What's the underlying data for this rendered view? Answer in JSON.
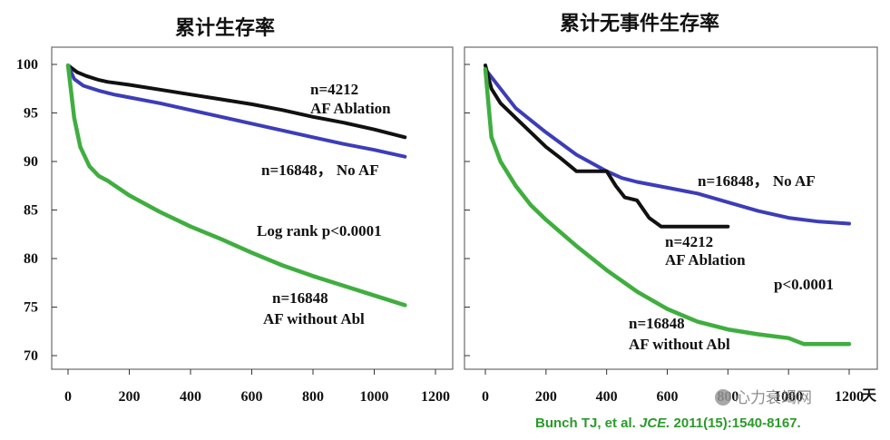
{
  "chart_data": [
    {
      "type": "line",
      "title": "累计生存率",
      "xlabel": "",
      "ylabel": "",
      "xlim": [
        0,
        1200
      ],
      "ylim": [
        70,
        100
      ],
      "xticks": [
        "0",
        "200",
        "400",
        "600",
        "800",
        "1000",
        "1200"
      ],
      "yticks": [
        "100",
        "95",
        "90",
        "85",
        "80",
        "75",
        "70"
      ],
      "series": [
        {
          "name": "AF Ablation",
          "color": "#111111",
          "x": [
            0,
            30,
            60,
            100,
            130,
            200,
            300,
            400,
            500,
            600,
            700,
            800,
            900,
            1000,
            1100
          ],
          "y": [
            99.9,
            99.2,
            98.8,
            98.4,
            98.2,
            97.9,
            97.4,
            96.9,
            96.4,
            95.9,
            95.3,
            94.6,
            94.0,
            93.3,
            92.5
          ]
        },
        {
          "name": "No AF",
          "color": "#3d3db8",
          "x": [
            0,
            20,
            50,
            100,
            150,
            200,
            300,
            400,
            500,
            600,
            700,
            800,
            900,
            1000,
            1100
          ],
          "y": [
            99.9,
            98.5,
            97.8,
            97.3,
            96.9,
            96.6,
            96.0,
            95.3,
            94.6,
            93.9,
            93.2,
            92.5,
            91.8,
            91.2,
            90.5
          ]
        },
        {
          "name": "AF without Abl",
          "color": "#3fae3f",
          "x": [
            0,
            20,
            40,
            70,
            100,
            130,
            200,
            300,
            400,
            500,
            600,
            700,
            800,
            900,
            1000,
            1100
          ],
          "y": [
            99.9,
            94.5,
            91.5,
            89.5,
            88.5,
            88.0,
            86.5,
            84.8,
            83.3,
            82.0,
            80.6,
            79.3,
            78.2,
            77.2,
            76.2,
            75.2
          ]
        }
      ],
      "annotations": [
        {
          "lines": [
            "n=4212",
            "AF Ablation"
          ]
        },
        {
          "lines": [
            "n=16848， No AF"
          ]
        },
        {
          "lines": [
            "Log rank p<0.0001"
          ]
        },
        {
          "lines": [
            "n=16848",
            "AF without Abl"
          ]
        }
      ]
    },
    {
      "type": "line",
      "title": "累计无事件生存率",
      "xlabel": "天",
      "ylabel": "",
      "xlim": [
        0,
        1200
      ],
      "ylim": [
        70,
        100
      ],
      "xticks": [
        "0",
        "200",
        "400",
        "600",
        "800",
        "1000",
        "1200"
      ],
      "yticks": [],
      "series": [
        {
          "name": "No AF",
          "color": "#3d3db8",
          "x": [
            0,
            50,
            100,
            200,
            300,
            400,
            450,
            500,
            600,
            700,
            800,
            900,
            1000,
            1100,
            1200
          ],
          "y": [
            99.5,
            97.5,
            95.5,
            93.0,
            90.7,
            89.0,
            88.3,
            87.9,
            87.3,
            86.7,
            85.8,
            84.9,
            84.2,
            83.8,
            83.6
          ]
        },
        {
          "name": "AF Ablation",
          "color": "#111111",
          "x": [
            0,
            20,
            50,
            100,
            150,
            200,
            250,
            300,
            350,
            400,
            430,
            460,
            500,
            540,
            580,
            620,
            700,
            800
          ],
          "y": [
            99.9,
            97.5,
            96.0,
            94.5,
            93.0,
            91.5,
            90.3,
            89.0,
            89.0,
            89.0,
            87.5,
            86.3,
            86.0,
            84.2,
            83.3,
            83.3,
            83.3,
            83.3
          ]
        },
        {
          "name": "AF without Abl",
          "color": "#3fae3f",
          "x": [
            0,
            20,
            50,
            100,
            150,
            200,
            300,
            400,
            500,
            600,
            700,
            800,
            900,
            1000,
            1050,
            1100,
            1200
          ],
          "y": [
            99.5,
            92.5,
            90.0,
            87.5,
            85.5,
            84.0,
            81.3,
            78.8,
            76.6,
            74.8,
            73.5,
            72.7,
            72.2,
            71.8,
            71.2,
            71.2,
            71.2
          ]
        }
      ],
      "annotations": [
        {
          "lines": [
            "n=16848， No AF"
          ]
        },
        {
          "lines": [
            "n=4212",
            "AF Ablation"
          ]
        },
        {
          "lines": [
            "p<0.0001"
          ]
        },
        {
          "lines": [
            "n=16848",
            "AF without Abl"
          ]
        }
      ]
    }
  ],
  "citation": {
    "prefix": "Bunch TJ, et al. ",
    "journal": "JCE.",
    "suffix": " 2011(15):1540-8167."
  },
  "watermark": {
    "text": "心力衰竭网"
  }
}
